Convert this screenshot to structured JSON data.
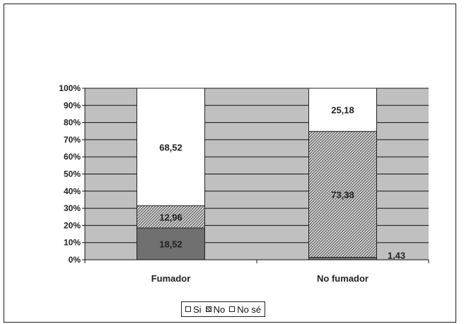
{
  "chart_data": {
    "type": "bar",
    "stacked": true,
    "percent_axis": true,
    "categories": [
      "Fumador",
      "No fumador"
    ],
    "series": [
      {
        "name": "No sé",
        "values": [
          18.52,
          1.43
        ],
        "color": "#707070"
      },
      {
        "name": "No",
        "values": [
          12.96,
          73.38
        ],
        "color": "#9e9e9e"
      },
      {
        "name": "Si",
        "values": [
          68.52,
          25.18
        ],
        "color": "#ffffff"
      }
    ],
    "value_labels": [
      [
        "18,52",
        "12,96",
        "68,52"
      ],
      [
        "1,43",
        "73,38",
        "25,18"
      ]
    ],
    "y_ticks": [
      "0%",
      "10%",
      "20%",
      "30%",
      "40%",
      "50%",
      "60%",
      "70%",
      "80%",
      "90%",
      "100%"
    ],
    "ylim": [
      0,
      100
    ],
    "plot_background": "#c0c0c0",
    "grid": true,
    "legend": {
      "position": "bottom",
      "entries": [
        {
          "symbol": "□",
          "label": "Si"
        },
        {
          "symbol": "⊠",
          "label": "No"
        },
        {
          "symbol": "□",
          "label": "No sé"
        }
      ]
    }
  }
}
